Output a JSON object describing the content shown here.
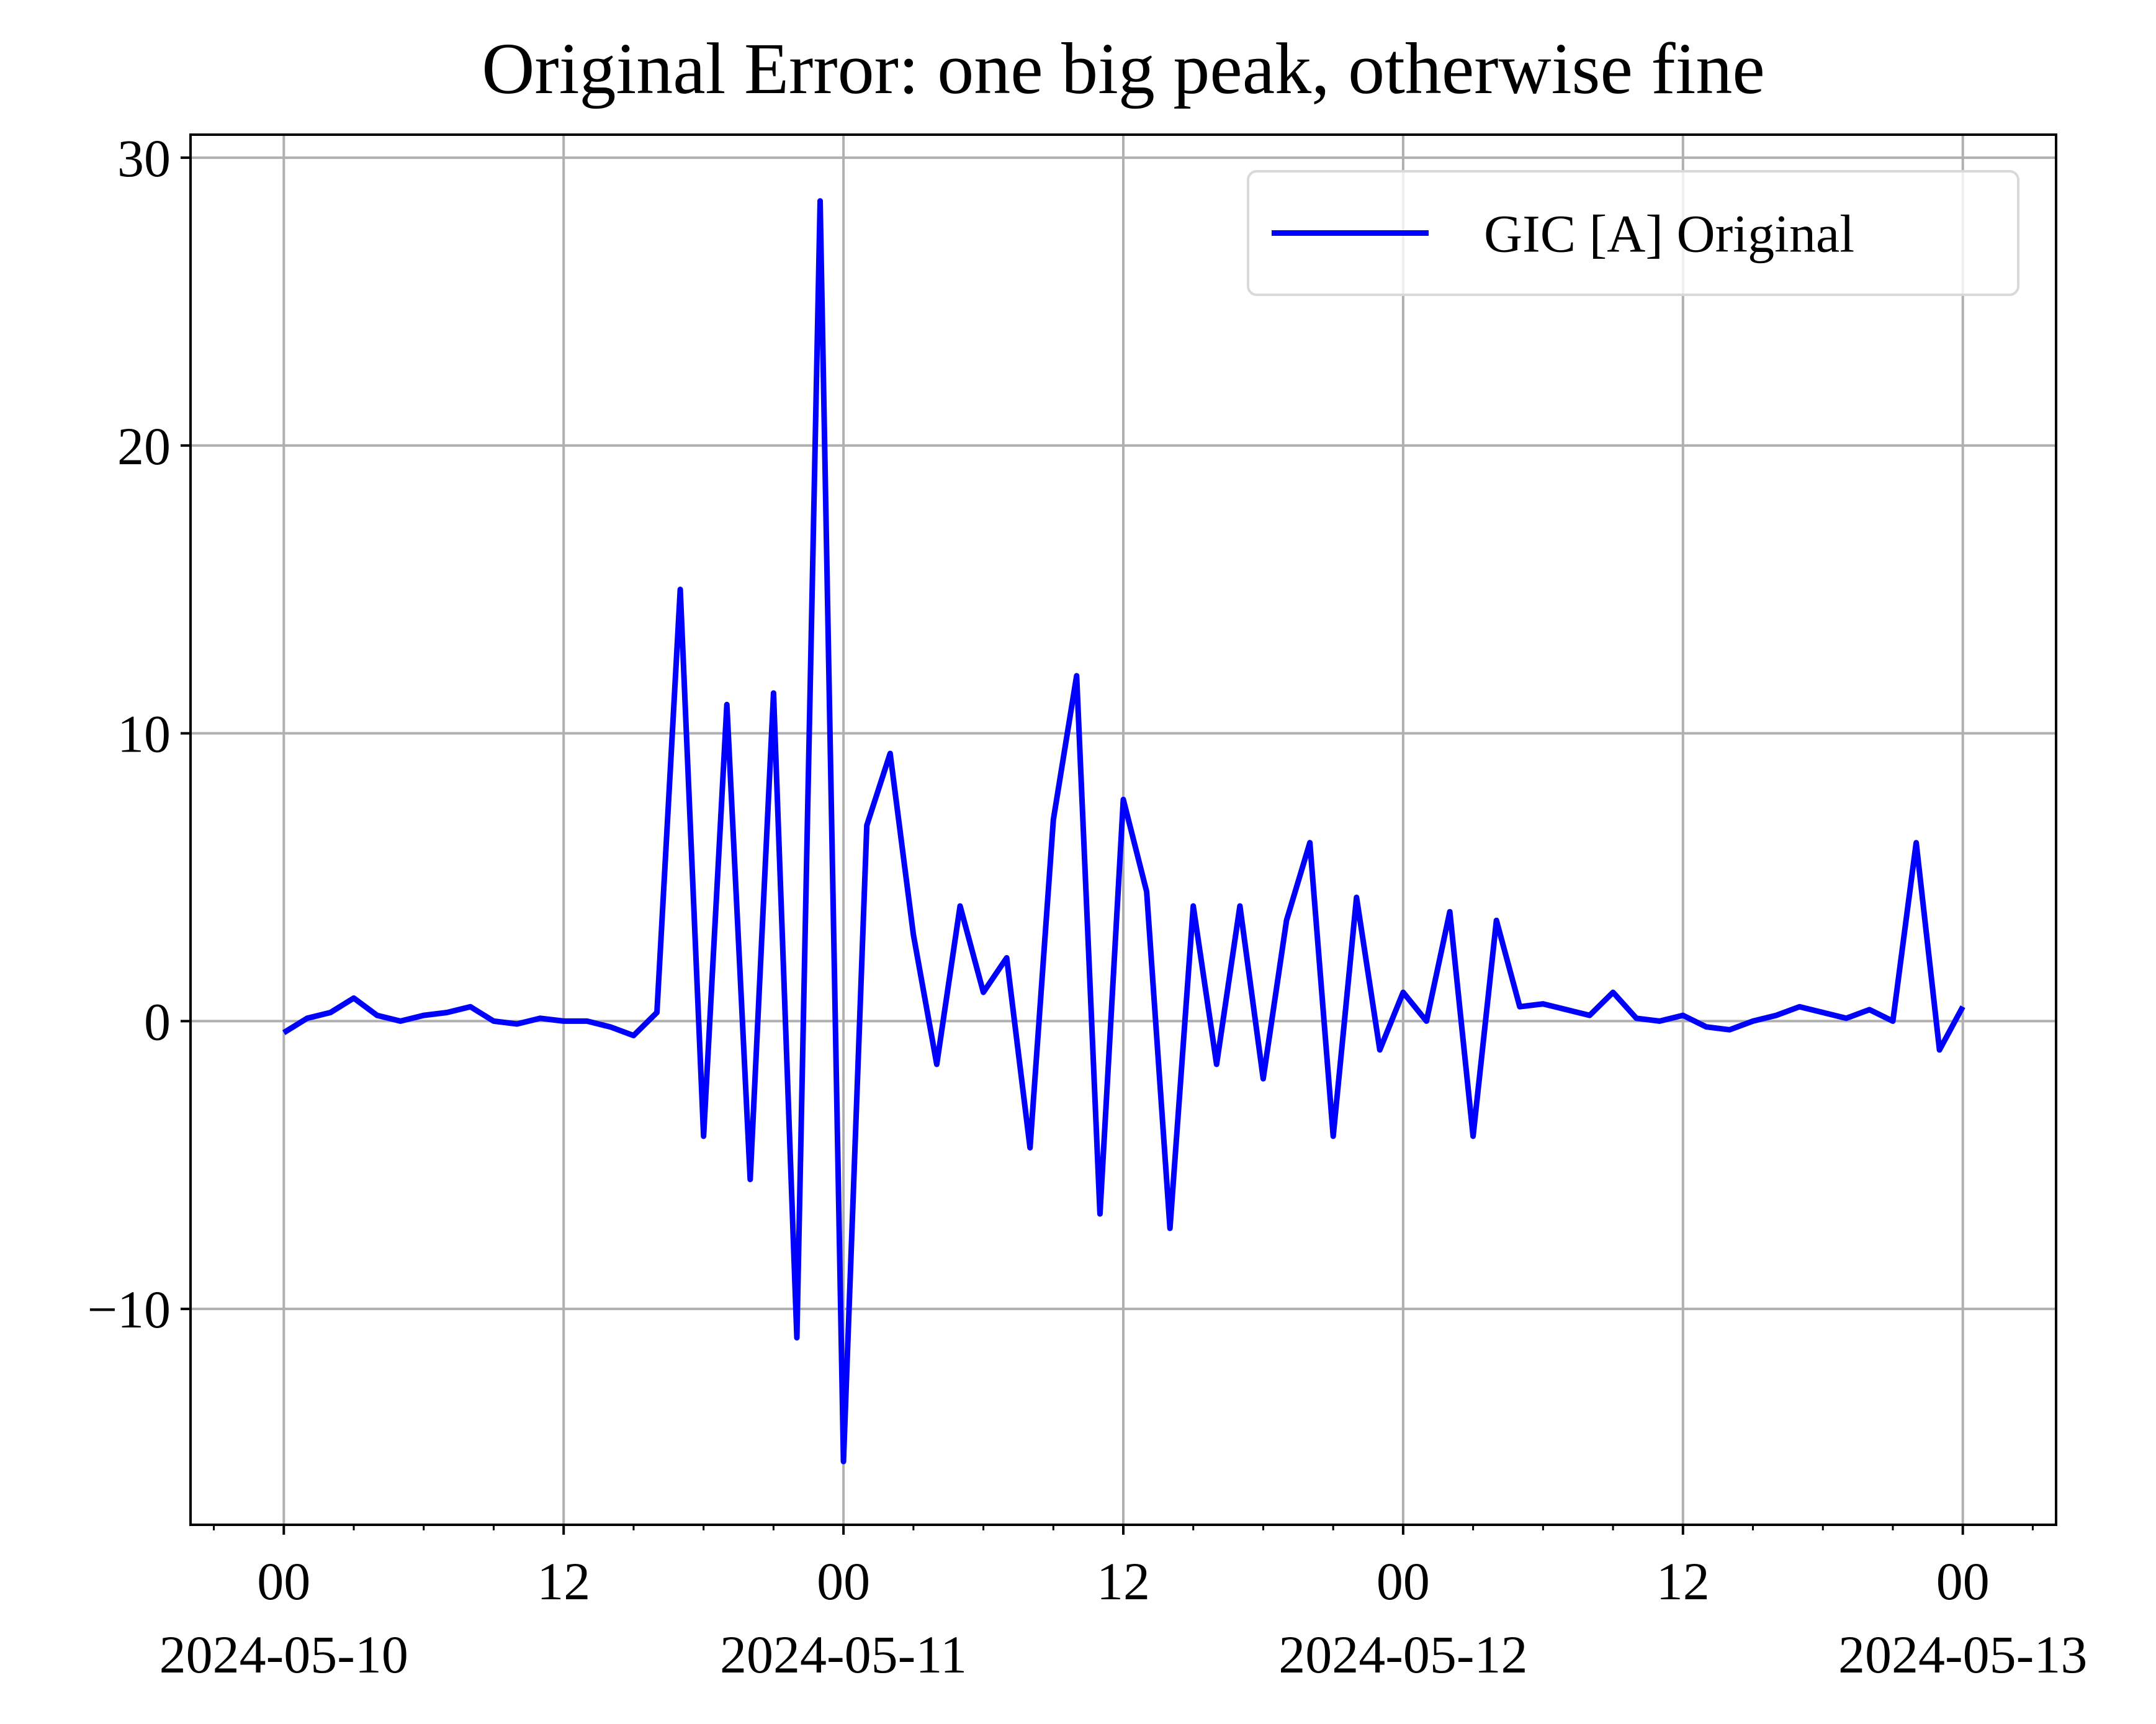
{
  "chart_data": {
    "type": "line",
    "title": "Original Error: one big peak, otherwise fine",
    "x": [
      "2024-05-10 00",
      "2024-05-10 01",
      "2024-05-10 02",
      "2024-05-10 03",
      "2024-05-10 04",
      "2024-05-10 05",
      "2024-05-10 06",
      "2024-05-10 07",
      "2024-05-10 08",
      "2024-05-10 09",
      "2024-05-10 10",
      "2024-05-10 11",
      "2024-05-10 12",
      "2024-05-10 13",
      "2024-05-10 14",
      "2024-05-10 15",
      "2024-05-10 16",
      "2024-05-10 17",
      "2024-05-10 18",
      "2024-05-10 19",
      "2024-05-10 20",
      "2024-05-10 21",
      "2024-05-10 22",
      "2024-05-10 23",
      "2024-05-11 00",
      "2024-05-11 01",
      "2024-05-11 02",
      "2024-05-11 03",
      "2024-05-11 04",
      "2024-05-11 05",
      "2024-05-11 06",
      "2024-05-11 07",
      "2024-05-11 08",
      "2024-05-11 09",
      "2024-05-11 10",
      "2024-05-11 11",
      "2024-05-11 12",
      "2024-05-11 13",
      "2024-05-11 14",
      "2024-05-11 15",
      "2024-05-11 16",
      "2024-05-11 17",
      "2024-05-11 18",
      "2024-05-11 19",
      "2024-05-11 20",
      "2024-05-11 21",
      "2024-05-11 22",
      "2024-05-11 23",
      "2024-05-12 00",
      "2024-05-12 01",
      "2024-05-12 02",
      "2024-05-12 03",
      "2024-05-12 04",
      "2024-05-12 05",
      "2024-05-12 06",
      "2024-05-12 07",
      "2024-05-12 08",
      "2024-05-12 09",
      "2024-05-12 10",
      "2024-05-12 11",
      "2024-05-12 12",
      "2024-05-12 13",
      "2024-05-12 14",
      "2024-05-12 15",
      "2024-05-12 16",
      "2024-05-12 17",
      "2024-05-12 18",
      "2024-05-12 19",
      "2024-05-12 20",
      "2024-05-12 21",
      "2024-05-12 22",
      "2024-05-12 23",
      "2024-05-13 00"
    ],
    "series": [
      {
        "name": "GIC [A] Original",
        "color": "#0000ff",
        "values": [
          -0.4,
          0.1,
          0.3,
          0.8,
          0.2,
          0,
          0.2,
          0.3,
          0.5,
          0,
          -0.1,
          0.1,
          0,
          0,
          -0.2,
          -0.5,
          0.3,
          15,
          -4,
          11,
          -5.5,
          11.4,
          -11,
          28.5,
          -15.3,
          6.8,
          9.3,
          3,
          -1.5,
          4,
          1,
          2.2,
          -4.4,
          7,
          12,
          -6.7,
          7.7,
          4.5,
          -7.2,
          4,
          -1.5,
          4,
          -2,
          3.5,
          6.2,
          -4,
          4.3,
          -1,
          1,
          0,
          3.8,
          -4,
          3.5,
          0.5,
          0.6,
          0.4,
          0.2,
          1,
          0.1,
          0,
          0.2,
          -0.2,
          -0.3,
          0,
          0.2,
          0.5,
          0.3,
          0.1,
          0.4,
          0,
          6.2,
          -1,
          0.5
        ]
      }
    ],
    "xlim": [
      "2024-05-09 20",
      "2024-05-13 04"
    ],
    "xticks": [
      {
        "value": "2024-05-10 00",
        "label": [
          "00",
          "2024-05-10"
        ]
      },
      {
        "value": "2024-05-10 12",
        "label": [
          "12"
        ]
      },
      {
        "value": "2024-05-11 00",
        "label": [
          "00",
          "2024-05-11"
        ]
      },
      {
        "value": "2024-05-11 12",
        "label": [
          "12"
        ]
      },
      {
        "value": "2024-05-12 00",
        "label": [
          "00",
          "2024-05-12"
        ]
      },
      {
        "value": "2024-05-12 12",
        "label": [
          "12"
        ]
      },
      {
        "value": "2024-05-13 00",
        "label": [
          "00",
          "2024-05-13"
        ]
      }
    ],
    "ylim": [
      -17.5,
      30.8
    ],
    "yticks": [
      {
        "value": -10,
        "label": "−10"
      },
      0,
      10,
      20,
      30
    ],
    "grid": true,
    "legend": "upper right"
  }
}
